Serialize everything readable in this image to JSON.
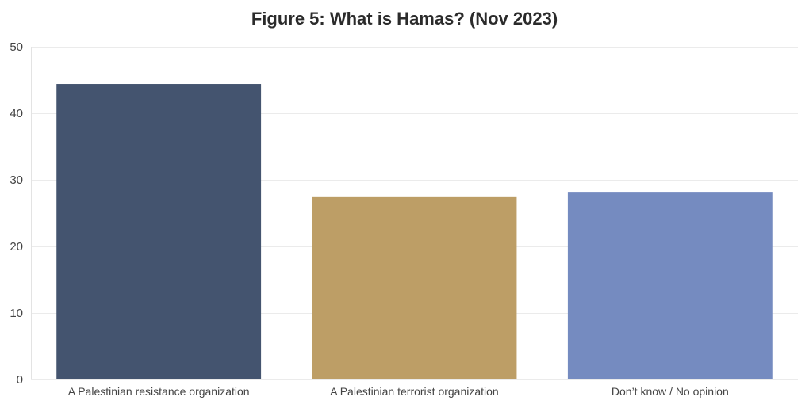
{
  "chart_data": {
    "type": "bar",
    "title": "Figure 5: What is Hamas? (Nov 2023)",
    "xlabel": "",
    "ylabel": "",
    "categories": [
      "A Palestinian resistance organization",
      "A Palestinian terrorist organization",
      "Don’t know / No opinion"
    ],
    "values": [
      44.4,
      27.4,
      28.2
    ],
    "colors": [
      "#44546f",
      "#bd9e66",
      "#758bc0"
    ],
    "ylim": [
      0,
      50
    ],
    "yticks": [
      0,
      10,
      20,
      30,
      40,
      50
    ],
    "grid": true,
    "legend": "none"
  }
}
